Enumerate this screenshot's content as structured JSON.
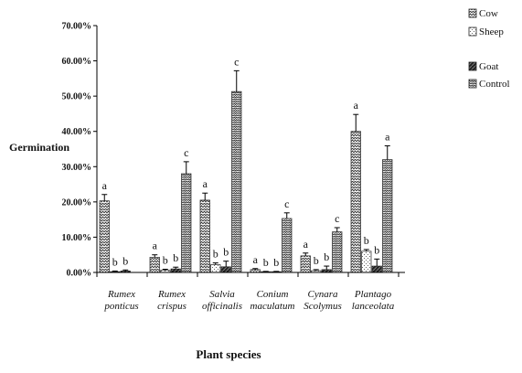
{
  "chart_data": {
    "type": "bar",
    "title": "",
    "xlabel": "Plant species",
    "ylabel": "Germination",
    "ylim": [
      0,
      70
    ],
    "y_ticks": [
      "0.00%",
      "10.00%",
      "20.00%",
      "30.00%",
      "40.00%",
      "50.00%",
      "60.00%",
      "70.00%"
    ],
    "y_tick_values": [
      0,
      10,
      20,
      30,
      40,
      50,
      60,
      70
    ],
    "grid": false,
    "legend_position": "top-right",
    "categories": [
      [
        "Rumex",
        "ponticus"
      ],
      [
        "Rumex",
        "crispus"
      ],
      [
        "Salvia",
        "officinalis"
      ],
      [
        "Conium",
        "maculatum"
      ],
      [
        "Cynara",
        "Scolymus"
      ],
      [
        "Plantago",
        "lanceolata"
      ]
    ],
    "series": [
      {
        "name": "Cow",
        "values": [
          20.3,
          4.3,
          20.5,
          0.8,
          4.7,
          40.0
        ],
        "errors": [
          1.8,
          0.7,
          2.0,
          0.3,
          0.8,
          4.8
        ],
        "letters": [
          "a",
          "a",
          "a",
          "a",
          "a",
          "a"
        ]
      },
      {
        "name": "Sheep",
        "values": [
          0.2,
          0.6,
          2.2,
          0.2,
          0.5,
          6.0
        ],
        "errors": [
          0.2,
          0.3,
          0.5,
          0.1,
          0.3,
          0.5
        ],
        "letters": [
          "b",
          "b",
          "b",
          "b",
          "b",
          "b"
        ]
      },
      {
        "name": "Goat",
        "values": [
          0.4,
          1.0,
          1.6,
          0.2,
          0.8,
          1.8
        ],
        "errors": [
          0.3,
          0.5,
          1.6,
          0.1,
          1.0,
          2.0
        ],
        "letters": [
          "b",
          "b",
          "b",
          "b",
          "b",
          "b"
        ]
      },
      {
        "name": "Control",
        "values": [
          0.0,
          28.0,
          51.3,
          15.3,
          11.5,
          32.0
        ],
        "errors": [
          0.0,
          3.4,
          5.9,
          1.6,
          1.2,
          3.9
        ],
        "letters": [
          "",
          "c",
          "c",
          "c",
          "c",
          "a"
        ]
      }
    ]
  }
}
